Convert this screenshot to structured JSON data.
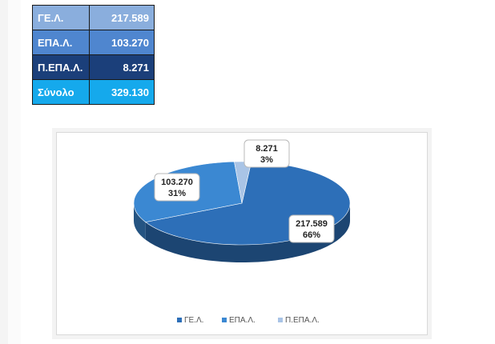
{
  "summary_table": {
    "rows": [
      {
        "label": "ΓΕ.Λ.",
        "value": "217.589",
        "bg": "#8aaedd"
      },
      {
        "label": "ΕΠΑ.Λ.",
        "value": "103.270",
        "bg": "#4f86cf"
      },
      {
        "label": "Π.ΕΠΑ.Λ.",
        "value": "8.271",
        "bg": "#1b3f7a"
      },
      {
        "label": "Σύνολο",
        "value": "329.130",
        "bg": "#15a9ec"
      }
    ]
  },
  "chart_data": {
    "type": "pie",
    "style": "3d",
    "slices": [
      {
        "name": "ΓΕ.Λ.",
        "value": 217589,
        "value_label": "217.589",
        "percent_label": "66%",
        "color": "#2d6fb8",
        "label_side": "right"
      },
      {
        "name": "ΕΠΑ.Λ.",
        "value": 103270,
        "value_label": "103.270",
        "percent_label": "31%",
        "color": "#3b88d2",
        "label_side": "left"
      },
      {
        "name": "Π.ΕΠΑ.Λ.",
        "value": 8271,
        "value_label": "8.271",
        "percent_label": "3%",
        "color": "#a9c4e6",
        "label_side": "top"
      }
    ],
    "legend": {
      "placement": "bottom",
      "items": [
        "ΓΕ.Λ.",
        "ΕΠΑ.Λ.",
        "Π.ΕΠΑ.Λ."
      ]
    }
  }
}
